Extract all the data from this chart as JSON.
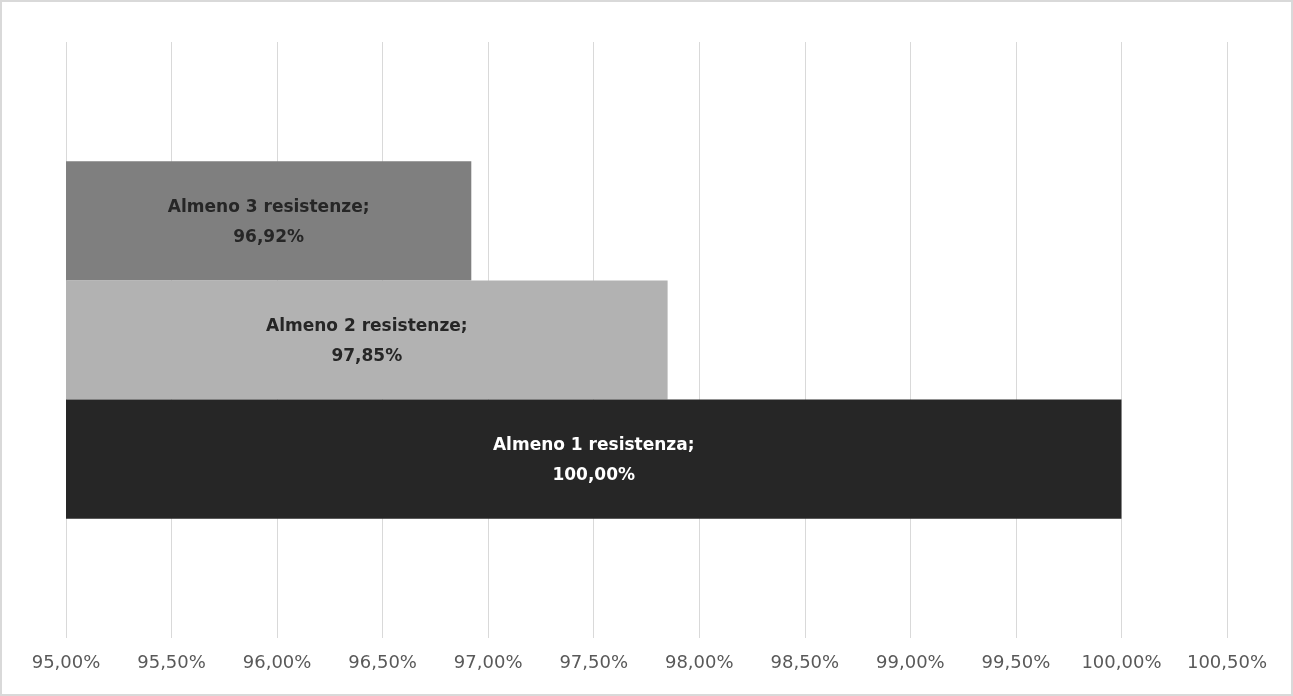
{
  "chart_data": {
    "type": "bar",
    "orientation": "horizontal",
    "categories": [
      null,
      null,
      null
    ],
    "values": [
      96.92,
      97.85,
      100
    ],
    "colors": [
      "#7f7f7f",
      "#b2b2b2",
      "#262626"
    ],
    "value_labels": [
      "Almeno 3 resistenze;\n96,92%",
      "Almeno 2 resistenze;\n97,85%",
      "Almeno 1 resistenza;\n100,00%"
    ],
    "xlim": [
      95,
      100.5
    ],
    "xticks": [
      {
        "value": 95,
        "label": "95,00%"
      },
      {
        "value": 95.5,
        "label": "95,50%"
      },
      {
        "value": 96,
        "label": "96,00%"
      },
      {
        "value": 96.5,
        "label": "96,50%"
      },
      {
        "value": 97,
        "label": "97,00%"
      },
      {
        "value": 97.5,
        "label": "97,50%"
      },
      {
        "value": 98,
        "label": "98,00%"
      },
      {
        "value": 98.5,
        "label": "98,50%"
      },
      {
        "value": 99,
        "label": "99,00%"
      },
      {
        "value": 99.5,
        "label": "99,50%"
      },
      {
        "value": 100,
        "label": "100,00%"
      },
      {
        "value": 100.5,
        "label": "100,50%"
      }
    ],
    "grid": "x"
  }
}
